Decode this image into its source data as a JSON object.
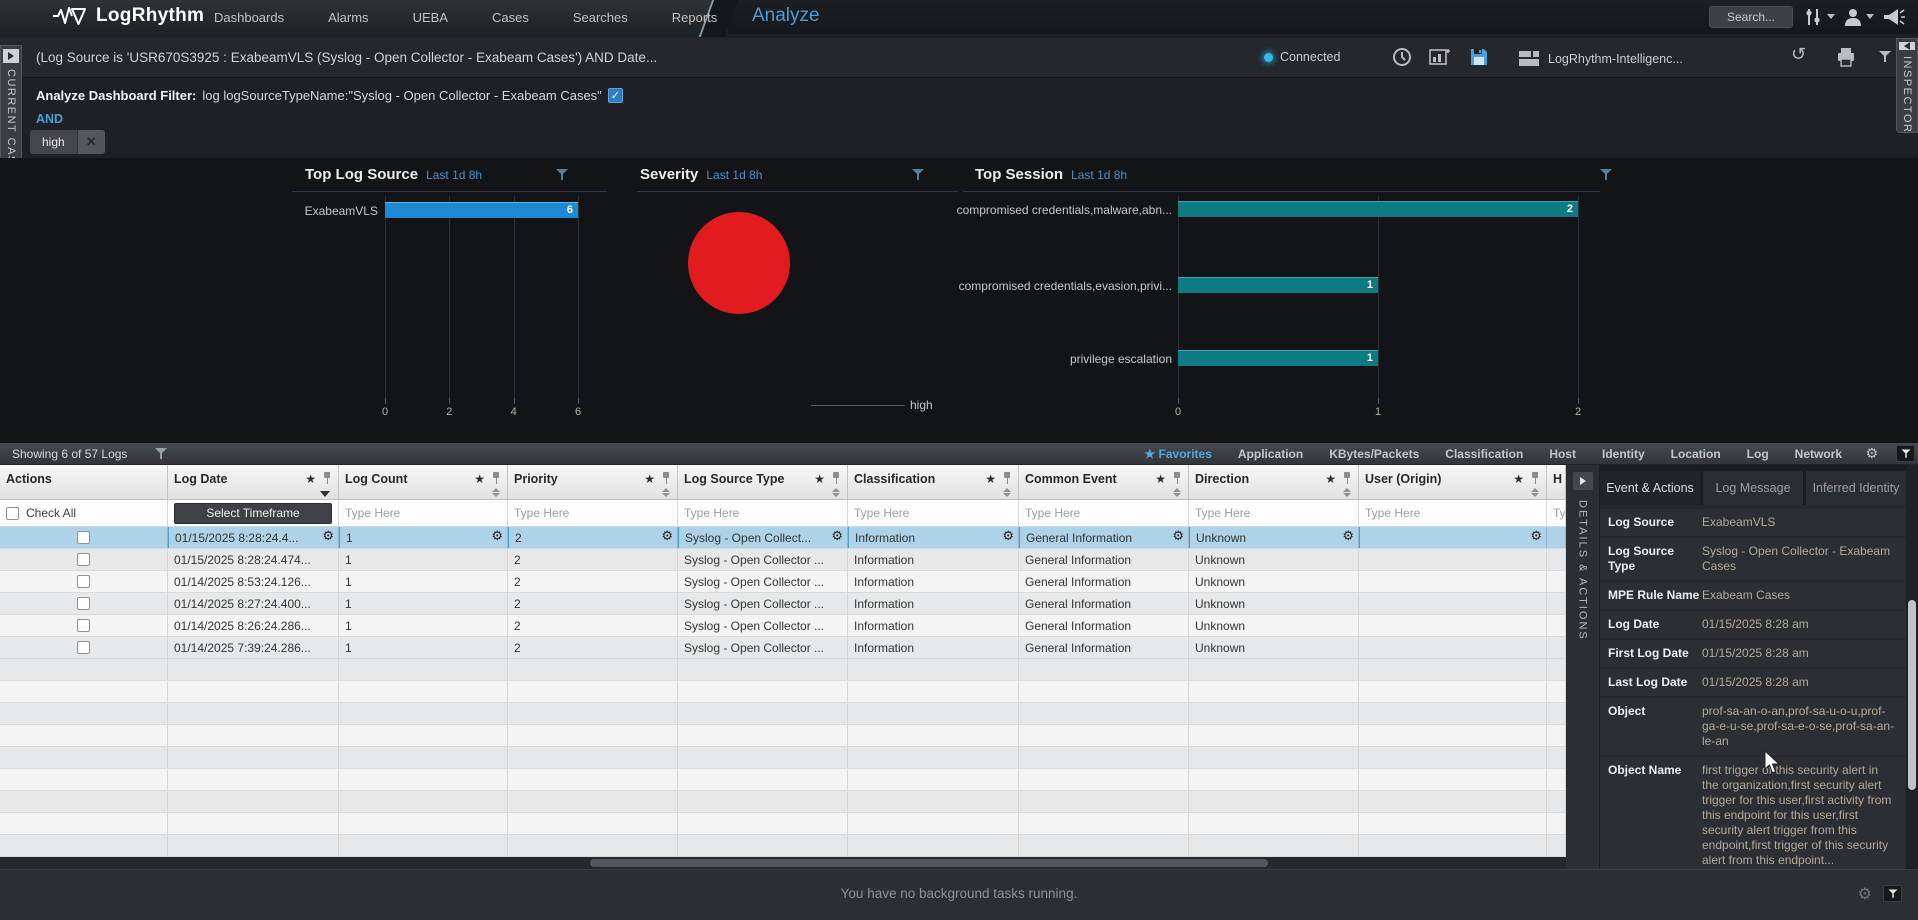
{
  "nav": {
    "brand": "LogRhythm",
    "items": [
      "Dashboards",
      "Alarms",
      "UEBA",
      "Cases",
      "Searches",
      "Reports"
    ],
    "active_tab": "Analyze",
    "search_label": "Search..."
  },
  "query_bar": {
    "query": "(Log Source is 'USR670S3925 : ExabeamVLS (Syslog - Open Collector - Exabeam Cases') AND Date...",
    "connection_status": "Connected",
    "saved_search": "LogRhythm-Intelligenc..."
  },
  "filter_panel": {
    "label": "Analyze Dashboard Filter:",
    "expression": "log logSourceTypeName:\"Syslog - Open Collector - Exabeam Cases\"",
    "checkbox_mark": "✓",
    "operator": "AND",
    "tag": "high",
    "tag_close": "✕"
  },
  "side_tabs": {
    "left": "CURRENT CASE",
    "right": "INSPECTOR",
    "details_strip": "DETAILS & ACTIONS"
  },
  "chart_data": [
    {
      "type": "bar",
      "orientation": "horizontal",
      "title": "Top Log Source",
      "timeframe": "Last 1d 8h",
      "categories": [
        "ExabeamVLS"
      ],
      "values": [
        6
      ],
      "xlim": [
        0,
        6
      ],
      "xticks": [
        0,
        2,
        4,
        6
      ],
      "bar_color": "#1d8bd3",
      "grid": true
    },
    {
      "type": "donut",
      "title": "Severity",
      "timeframe": "Last 1d 8h",
      "categories": [
        "high"
      ],
      "values": [
        6
      ],
      "colors": [
        "#e11b1e"
      ],
      "callout_label": "high"
    },
    {
      "type": "bar",
      "orientation": "horizontal",
      "title": "Top Session",
      "timeframe": "Last 1d 8h",
      "categories": [
        "compromised credentials,malware,abn...",
        "compromised credentials,evasion,privi...",
        "privilege escalation"
      ],
      "values": [
        2,
        1,
        1
      ],
      "xlim": [
        0,
        2
      ],
      "xticks": [
        0,
        1,
        2
      ],
      "bar_color": "#0e7b84",
      "grid": true
    }
  ],
  "log_table": {
    "summary": "Showing 6 of 57 Logs",
    "view_tabs": [
      "Favorites",
      "Application",
      "KBytes/Packets",
      "Classification",
      "Host",
      "Identity",
      "Location",
      "Log",
      "Network"
    ],
    "active_view_tab": "Favorites",
    "favorites_star": "★",
    "columns": [
      "Actions",
      "Log Date",
      "Log Count",
      "Priority",
      "Log Source Type",
      "Classification",
      "Common Event",
      "Direction",
      "User (Origin)",
      "H"
    ],
    "filter_row": {
      "check_all": "Check All",
      "timeframe_button": "Select Timeframe",
      "placeholder": "Type Here"
    },
    "rows": [
      {
        "selected": true,
        "cells": [
          "01/15/2025 8:28:24.4...",
          "1",
          "2",
          "Syslog - Open Collect...",
          "Information",
          "General Information",
          "Unknown",
          ""
        ]
      },
      {
        "selected": false,
        "cells": [
          "01/15/2025 8:28:24.474...",
          "1",
          "2",
          "Syslog - Open Collector ...",
          "Information",
          "General Information",
          "Unknown",
          ""
        ]
      },
      {
        "selected": false,
        "cells": [
          "01/14/2025 8:53:24.126...",
          "1",
          "2",
          "Syslog - Open Collector ...",
          "Information",
          "General Information",
          "Unknown",
          ""
        ]
      },
      {
        "selected": false,
        "cells": [
          "01/14/2025 8:27:24.400...",
          "1",
          "2",
          "Syslog - Open Collector ...",
          "Information",
          "General Information",
          "Unknown",
          ""
        ]
      },
      {
        "selected": false,
        "cells": [
          "01/14/2025 8:26:24.286...",
          "1",
          "2",
          "Syslog - Open Collector ...",
          "Information",
          "General Information",
          "Unknown",
          ""
        ]
      },
      {
        "selected": false,
        "cells": [
          "01/14/2025 7:39:24.286...",
          "1",
          "2",
          "Syslog - Open Collector ...",
          "Information",
          "General Information",
          "Unknown",
          ""
        ]
      }
    ]
  },
  "details_panel": {
    "tabs": [
      "Event & Actions",
      "Log Message",
      "Inferred Identity"
    ],
    "active_tab": "Event & Actions",
    "fields": [
      {
        "label": "Log Source",
        "value": "ExabeamVLS"
      },
      {
        "label": "Log Source Type",
        "value": "Syslog - Open Collector - Exabeam Cases"
      },
      {
        "label": "MPE Rule Name",
        "value": "Exabeam Cases"
      },
      {
        "label": "Log Date",
        "value": "01/15/2025 8:28 am"
      },
      {
        "label": "First Log Date",
        "value": "01/15/2025 8:28 am"
      },
      {
        "label": "Last Log Date",
        "value": "01/15/2025 8:28 am"
      },
      {
        "label": "Object",
        "value": "prof-sa-an-o-an,prof-sa-u-o-u,prof-ga-e-u-se,prof-sa-e-o-se,prof-sa-an-le-an"
      },
      {
        "label": "Object Name",
        "value": "first trigger of this security alert in the organization,first security alert trigger for this user,first activity from this endpoint for this user,first security alert trigger from this endpoint,first trigger of this security alert from this endpoint..."
      }
    ]
  },
  "status_bar": {
    "message": "You have no background tasks running."
  }
}
